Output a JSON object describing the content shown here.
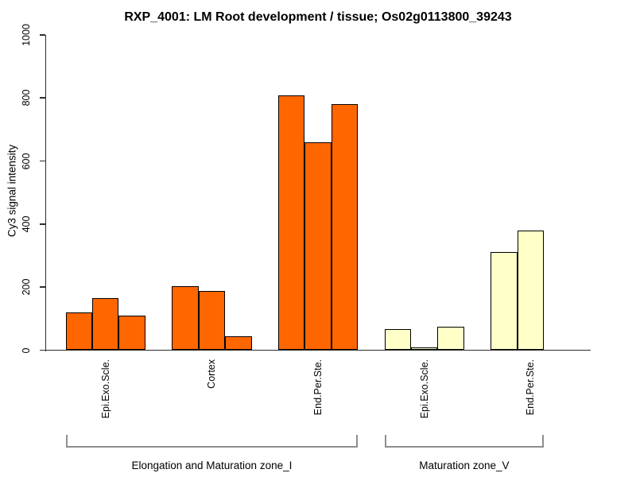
{
  "chart_data": {
    "type": "bar",
    "title": "RXP_4001: LM Root development / tissue; Os02g0113800_39243",
    "ylabel": "Cy3 signal intensity",
    "xlabel": "",
    "ylim": [
      0,
      1000
    ],
    "yticks": [
      0,
      200,
      400,
      600,
      800,
      1000
    ],
    "grid": false,
    "legend": "none",
    "sections": [
      {
        "label": "Elongation and Maturation zone_I",
        "bar_color": "#FF6600",
        "groups": [
          {
            "label": "Epi.Exo.Scle.",
            "values": [
              120,
              166,
              110
            ]
          },
          {
            "label": "Cortex",
            "values": [
              202,
              188,
              43
            ]
          },
          {
            "label": "End.Per.Ste.",
            "values": [
              807,
              659,
              781
            ]
          }
        ]
      },
      {
        "label": "Maturation zone_V",
        "bar_color": "#FFFFC8",
        "groups": [
          {
            "label": "Epi.Exo.Scle.",
            "values": [
              68,
              8,
              75
            ]
          },
          {
            "label": "End.Per.Ste.",
            "values": [
              312,
              380
            ]
          }
        ]
      }
    ],
    "colors": {
      "bar_border": "#000000",
      "axis": "#2e2e2e",
      "bracket": "#8e8e8e",
      "text": "#000000",
      "background": "#ffffff"
    }
  }
}
